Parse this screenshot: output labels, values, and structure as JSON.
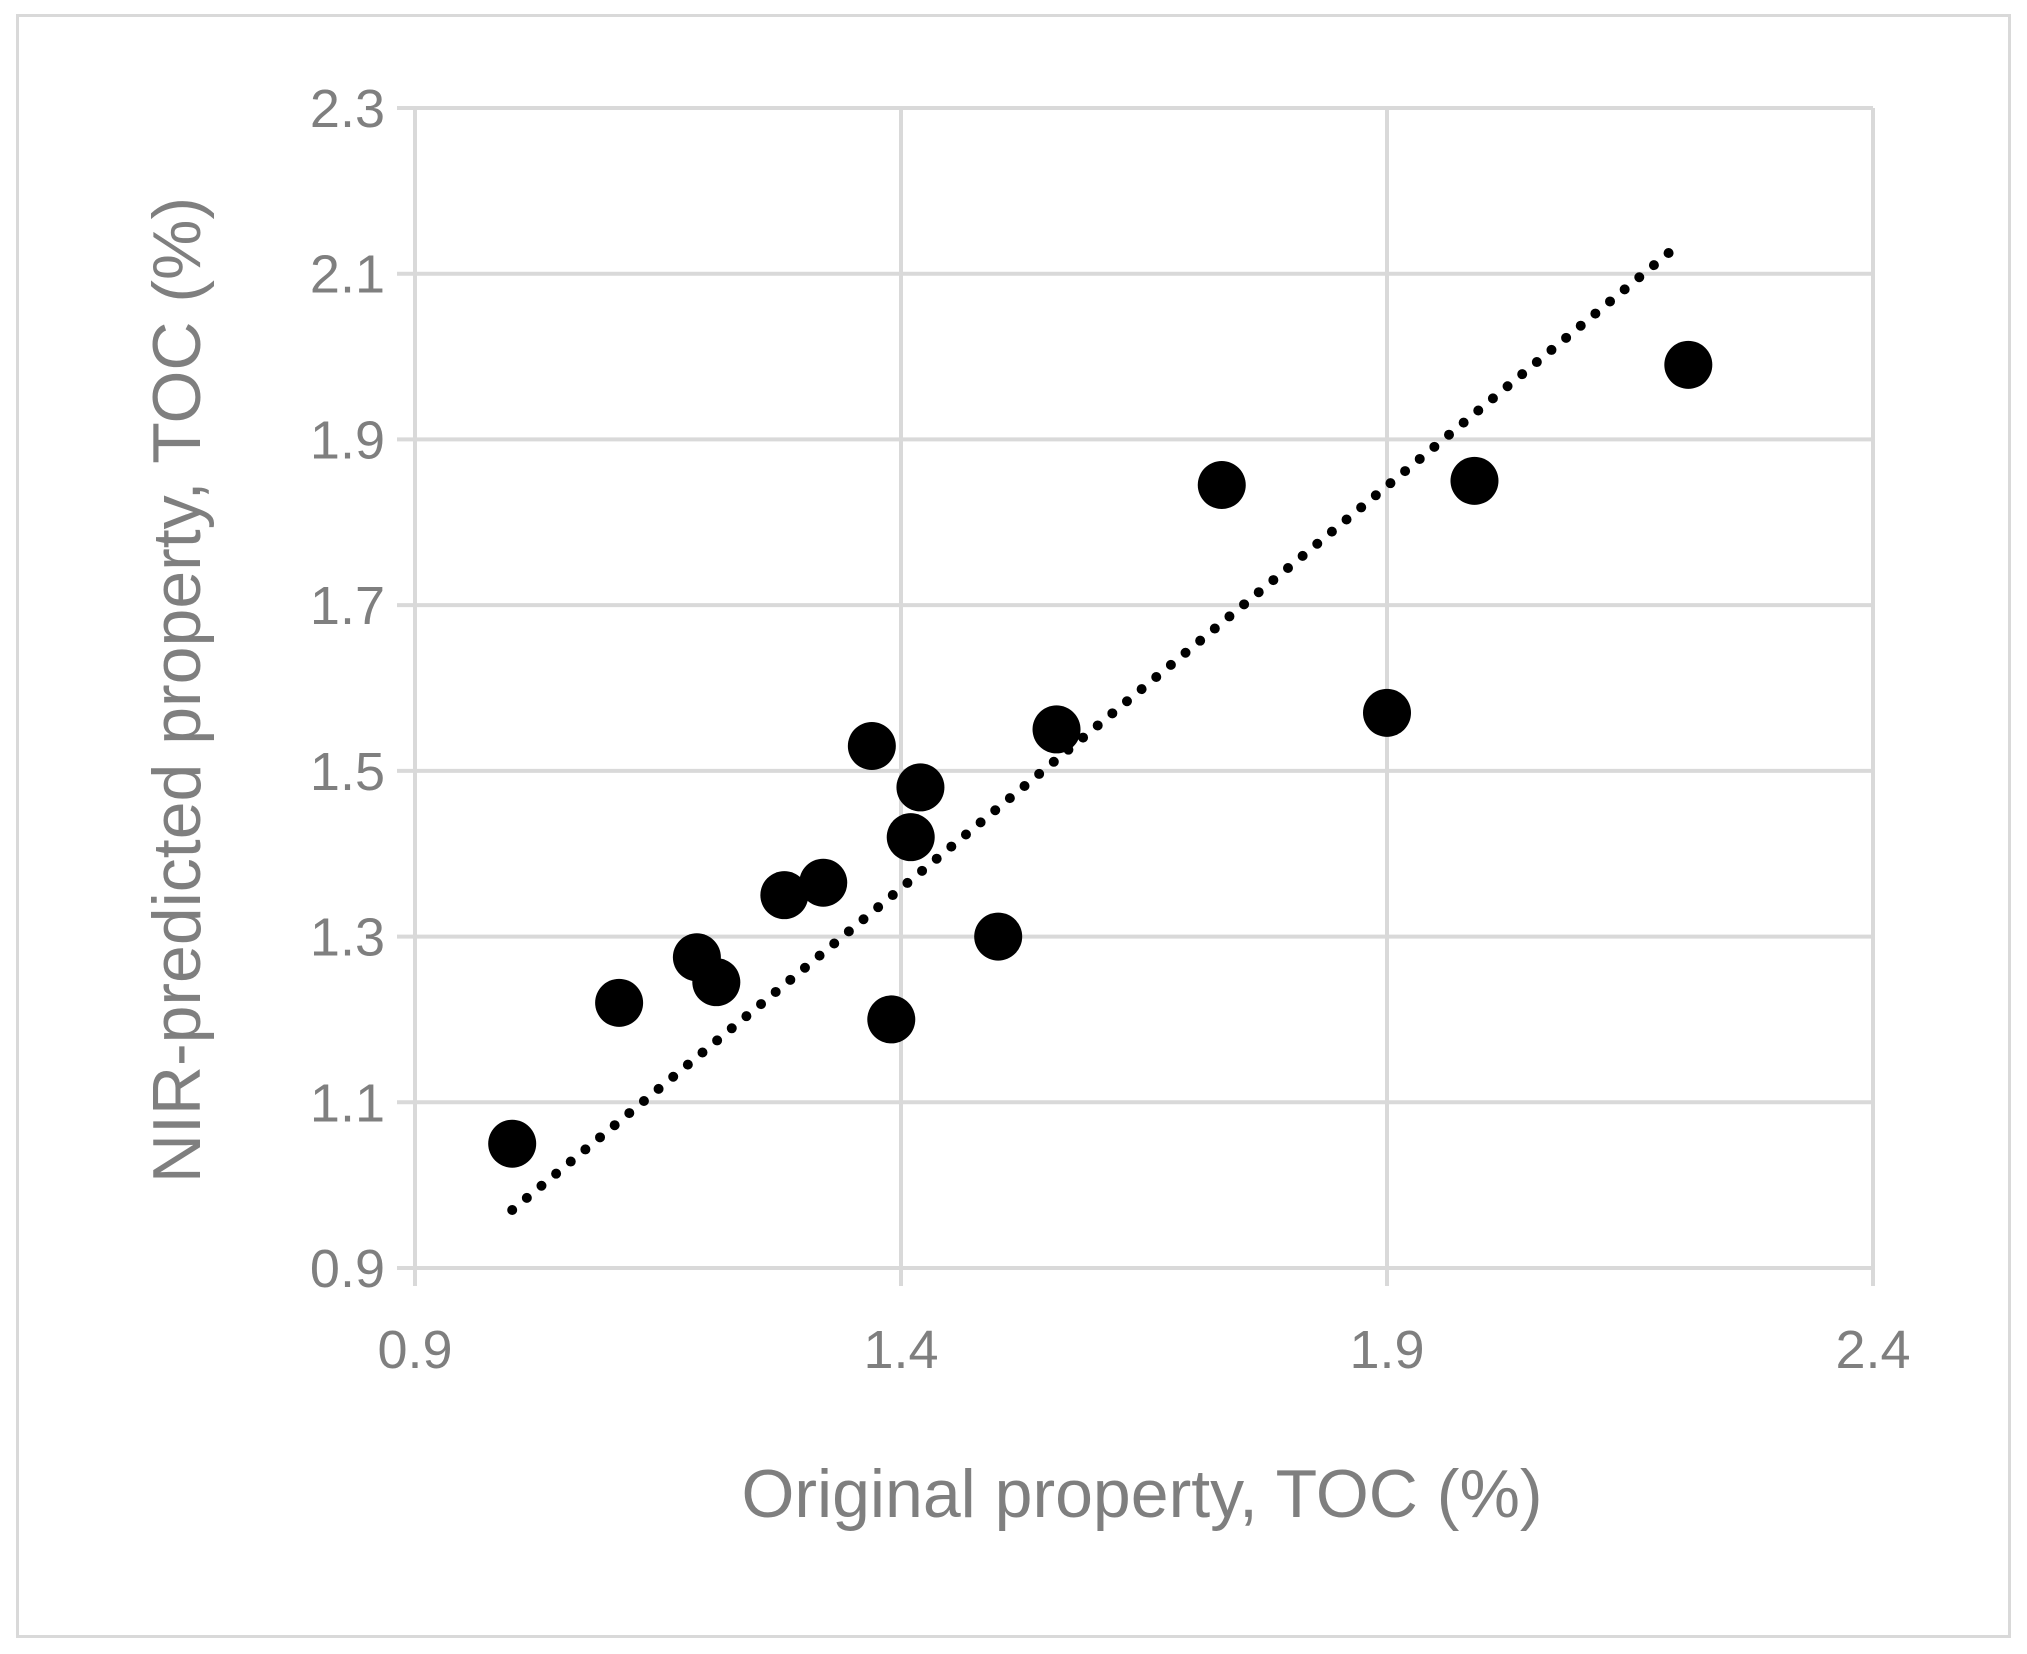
{
  "chart_data": {
    "type": "scatter",
    "title": "",
    "xlabel": "Original property, TOC (%)",
    "ylabel": "NIR-predicted property, TOC (%)",
    "xlim": [
      0.9,
      2.4
    ],
    "ylim": [
      0.9,
      2.3
    ],
    "x_ticks": [
      "0.9",
      "1.4",
      "1.9",
      "2.4"
    ],
    "y_ticks": [
      "0.9",
      "1.1",
      "1.3",
      "1.5",
      "1.7",
      "1.9",
      "2.1",
      "2.3"
    ],
    "x_tick_values": [
      0.9,
      1.4,
      1.9,
      2.4
    ],
    "y_tick_values": [
      0.9,
      1.1,
      1.3,
      1.5,
      1.7,
      1.9,
      2.1,
      2.3
    ],
    "grid": true,
    "marker_color": "#000000",
    "series": [
      {
        "points": [
          [
            1.0,
            1.05
          ],
          [
            1.11,
            1.22
          ],
          [
            1.19,
            1.275
          ],
          [
            1.21,
            1.245
          ],
          [
            1.28,
            1.35
          ],
          [
            1.32,
            1.365
          ],
          [
            1.37,
            1.53
          ],
          [
            1.39,
            1.2
          ],
          [
            1.41,
            1.42
          ],
          [
            1.42,
            1.48
          ],
          [
            1.5,
            1.3
          ],
          [
            1.56,
            1.55
          ],
          [
            1.73,
            1.845
          ],
          [
            1.9,
            1.57
          ],
          [
            1.99,
            1.85
          ],
          [
            2.21,
            1.99
          ]
        ]
      }
    ],
    "trendline": {
      "style": "dotted",
      "x_start": 1.0,
      "x_end": 2.2,
      "y_start": 0.97,
      "y_end": 2.135
    }
  }
}
